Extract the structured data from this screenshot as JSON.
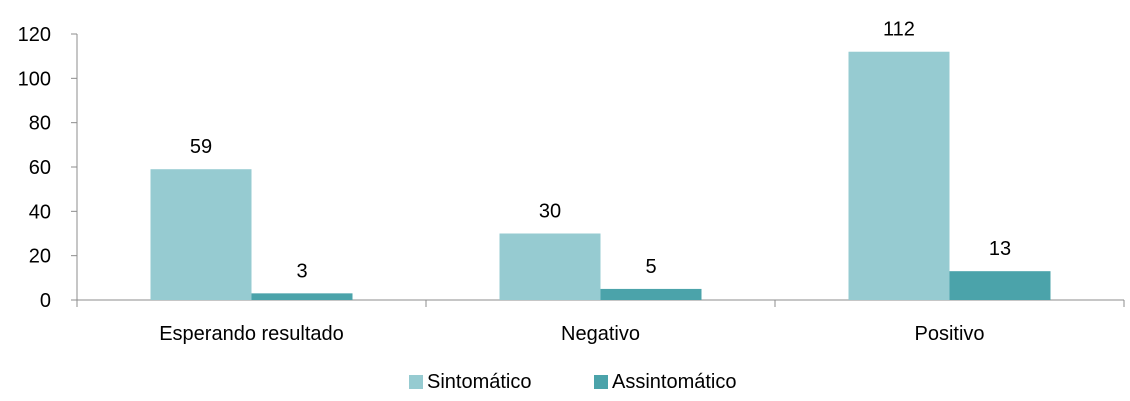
{
  "chart_data": {
    "type": "bar",
    "title": "",
    "xlabel": "",
    "ylabel": "",
    "categories": [
      "Esperando resultado",
      "Negativo",
      "Positivo"
    ],
    "series": [
      {
        "name": "Sintomático",
        "values": [
          59,
          30,
          112
        ],
        "color": "#96CBD1"
      },
      {
        "name": "Assintomático",
        "values": [
          3,
          5,
          13
        ],
        "color": "#4BA3AA"
      }
    ],
    "ylim": [
      0,
      120
    ],
    "yticks": [
      0,
      20,
      40,
      60,
      80,
      100,
      120
    ],
    "grid": false,
    "data_labels": true,
    "legend_placement": "bottom"
  }
}
